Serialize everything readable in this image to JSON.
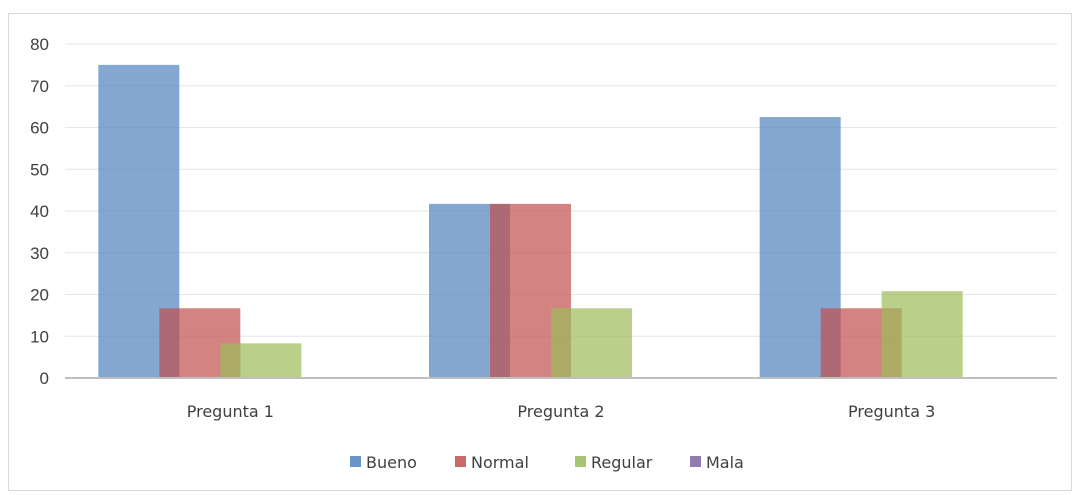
{
  "chart_data": {
    "type": "bar",
    "categories": [
      "Pregunta 1",
      "Pregunta 2",
      "Pregunta 3"
    ],
    "series": [
      {
        "name": "Bueno",
        "values": [
          75,
          41.7,
          62.5
        ],
        "color": "#4f81bd"
      },
      {
        "name": "Normal",
        "values": [
          16.7,
          41.7,
          16.7
        ],
        "color": "#c0504d"
      },
      {
        "name": "Regular",
        "values": [
          8.3,
          16.7,
          20.8
        ],
        "color": "#9bbb59"
      },
      {
        "name": "Mala",
        "values": [
          0,
          0,
          0
        ],
        "color": "#8064a2"
      }
    ],
    "ylim": [
      0,
      80
    ],
    "yticks": [
      "0",
      "10",
      "20",
      "30",
      "40",
      "50",
      "60",
      "70",
      "80"
    ],
    "title": "",
    "xlabel": "",
    "ylabel": "",
    "grid": true,
    "legend_position": "bottom",
    "bar_opacity": 0.7
  }
}
